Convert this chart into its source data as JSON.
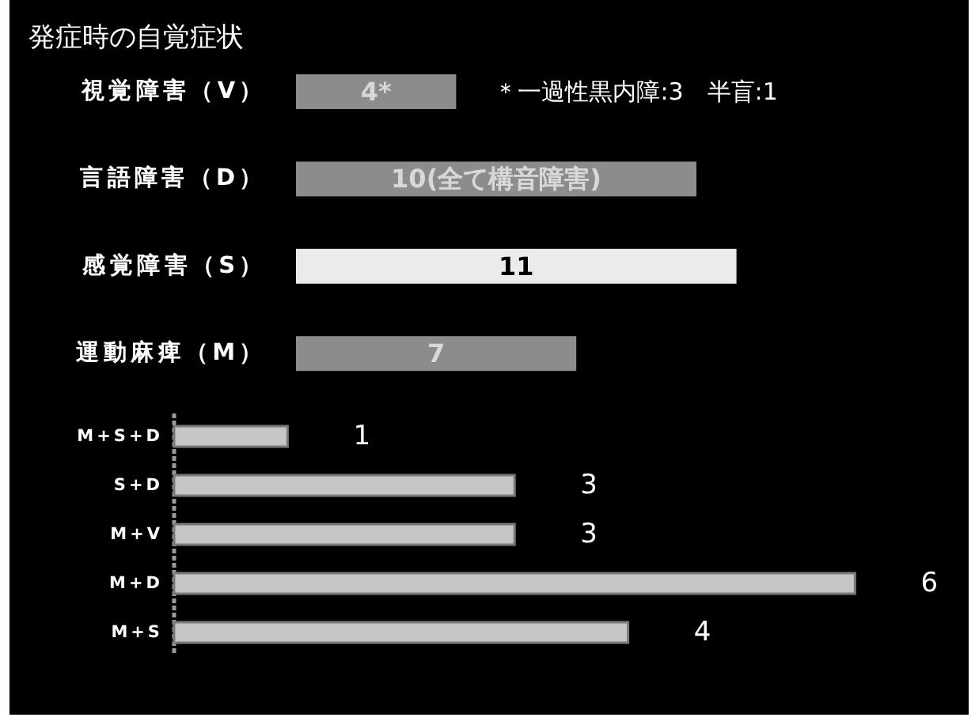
{
  "chart_data": [
    {
      "type": "bar",
      "orientation": "horizontal",
      "title": "発症時の自覚症状",
      "categories": [
        "視覚障害（V）",
        "言語障害（D）",
        "感覚障害（S）",
        "運動麻痺（M）"
      ],
      "values": [
        4,
        10,
        11,
        7
      ],
      "colors": [
        "#8c8c8c",
        "#8c8c8c",
        "#ebebeb",
        "#8c8c8c"
      ],
      "value_labels": [
        "4*",
        "10(全て構音障害)",
        "11",
        "7"
      ],
      "annotations": [
        "＊一過性黒内障:3　半盲:1"
      ]
    },
    {
      "type": "bar",
      "orientation": "horizontal",
      "categories": [
        "M+S+D",
        "S+D",
        "M+V",
        "M+D",
        "M+S"
      ],
      "values": [
        1,
        3,
        3,
        6,
        4
      ],
      "color": "#c6c6c6",
      "data_labels": true
    }
  ]
}
